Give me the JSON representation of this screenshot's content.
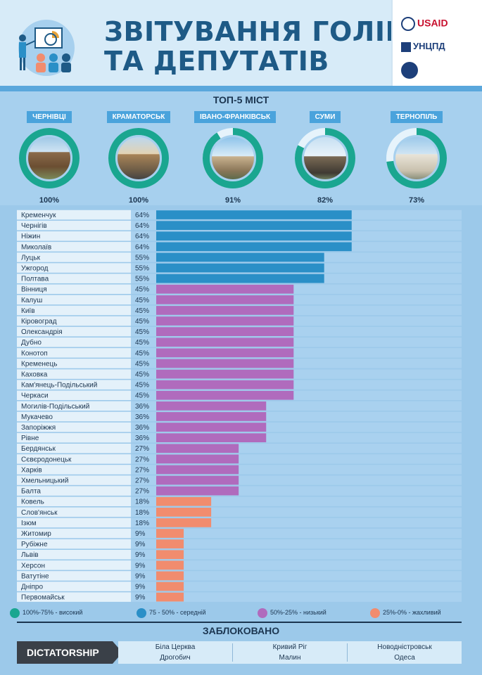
{
  "header": {
    "title_line1": "ЗВІТУВАННЯ ГОЛІВ",
    "title_line2": "ТА ДЕПУТАТІВ",
    "logo_usaid": "USAID",
    "logo_unz": "УНЦПД"
  },
  "top5": {
    "title": "ТОП-5 МІСТ",
    "cities": [
      {
        "name": "ЧЕРНІВЦІ",
        "percent_label": "100%",
        "value": 100
      },
      {
        "name": "КРАМАТОРСЬК",
        "percent_label": "100%",
        "value": 100
      },
      {
        "name": "ІВАНО-ФРАНКІВСЬК",
        "percent_label": "91%",
        "value": 91
      },
      {
        "name": "СУМИ",
        "percent_label": "82%",
        "value": 82
      },
      {
        "name": "ТЕРНОПІЛЬ",
        "percent_label": "73%",
        "value": 73
      }
    ]
  },
  "colors": {
    "high": "#1aa690",
    "medium": "#2a8fc7",
    "low": "#b06bbd",
    "bad": "#f18c6e",
    "track": "#a9d1ef",
    "ring_track": "#e6f3fb"
  },
  "chart_data": {
    "type": "bar",
    "orientation": "horizontal",
    "xlim": [
      0,
      100
    ],
    "categories": [
      "Кременчук",
      "Чернігів",
      "Ніжин",
      "Миколаїв",
      "Луцьк",
      "Ужгород",
      "Полтава",
      "Вінниця",
      "Калуш",
      "Київ",
      "Кіровоград",
      "Олександрія",
      "Дубно",
      "Конотоп",
      "Кременець",
      "Каховка",
      "Кам'янець-Подільський",
      "Черкаси",
      "Могилів-Подільський",
      "Мукачево",
      "Запоріжжя",
      "Рівне",
      "Бердянськ",
      "Сєвєродонецьк",
      "Харків",
      "Хмельницький",
      "Балта",
      "Ковель",
      "Слов'янськ",
      "Ізюм",
      "Житомир",
      "Рубіжне",
      "Львів",
      "Херсон",
      "Ватутіне",
      "Дніпро",
      "Первомайськ"
    ],
    "values": [
      64,
      64,
      64,
      64,
      55,
      55,
      55,
      45,
      45,
      45,
      45,
      45,
      45,
      45,
      45,
      45,
      45,
      45,
      36,
      36,
      36,
      36,
      27,
      27,
      27,
      27,
      27,
      18,
      18,
      18,
      9,
      9,
      9,
      9,
      9,
      9,
      9
    ],
    "value_labels": [
      "64%",
      "64%",
      "64%",
      "64%",
      "55%",
      "55%",
      "55%",
      "45%",
      "45%",
      "45%",
      "45%",
      "45%",
      "45%",
      "45%",
      "45%",
      "45%",
      "45%",
      "45%",
      "36%",
      "36%",
      "36%",
      "36%",
      "27%",
      "27%",
      "27%",
      "27%",
      "27%",
      "18%",
      "18%",
      "18%",
      "9%",
      "9%",
      "9%",
      "9%",
      "9%",
      "9%",
      "9%"
    ],
    "legend": [
      {
        "label": "100%-75% - високий",
        "color_key": "high"
      },
      {
        "label": "75 - 50% - середній",
        "color_key": "medium"
      },
      {
        "label": "50%-25% - низький",
        "color_key": "low"
      },
      {
        "label": "25%-0% - жахливий",
        "color_key": "bad"
      }
    ]
  },
  "blocked": {
    "title": "ЗАБЛОКОВАНО",
    "label": "DICTATORSHIP",
    "columns": [
      [
        "Біла Церква",
        "Дрогобич"
      ],
      [
        "Кривий Ріг",
        "Малин"
      ],
      [
        "Новодністровськ",
        "Одеса"
      ]
    ]
  }
}
